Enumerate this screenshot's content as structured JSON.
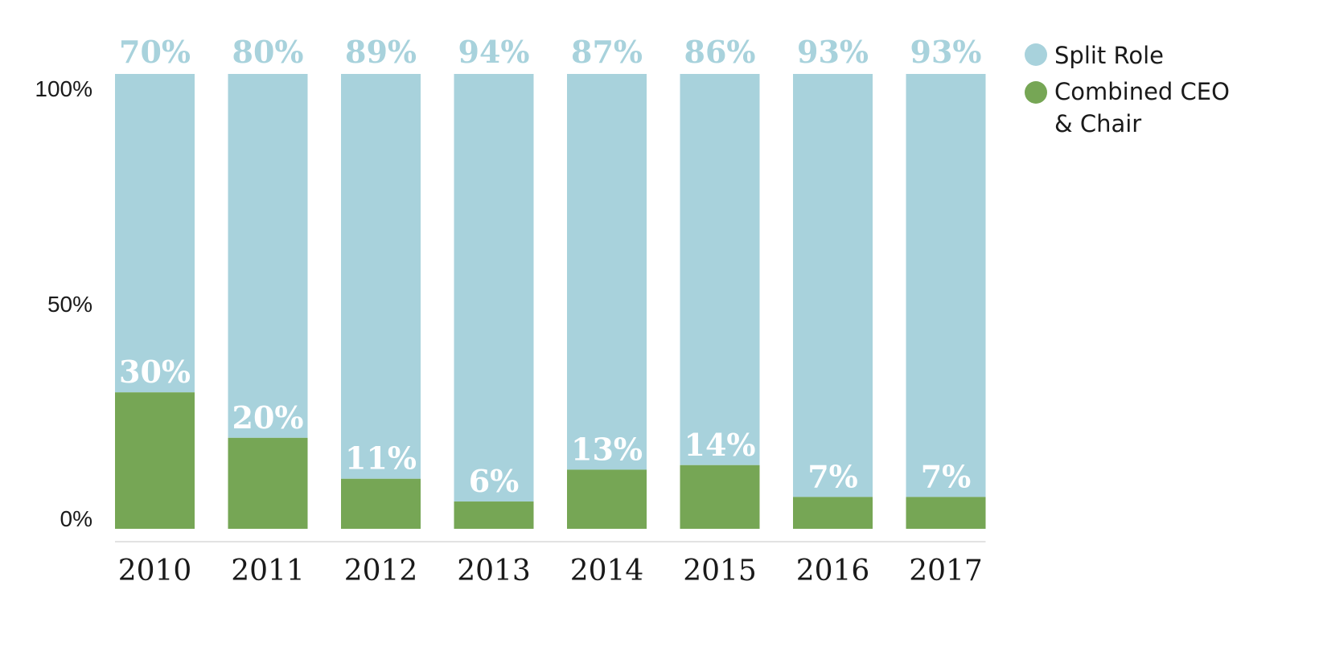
{
  "chart_data": {
    "type": "bar",
    "stacked": true,
    "categories": [
      "2010",
      "2011",
      "2012",
      "2013",
      "2014",
      "2015",
      "2016",
      "2017"
    ],
    "series": [
      {
        "name": "Split Role",
        "color": "#a8d2dc",
        "values": [
          70,
          80,
          89,
          94,
          87,
          86,
          93,
          93
        ],
        "labels": [
          "70%",
          "80%",
          "89%",
          "94%",
          "87%",
          "86%",
          "93%",
          "93%"
        ]
      },
      {
        "name": "Combined CEO & Chair",
        "color": "#76a655",
        "values": [
          30,
          20,
          11,
          6,
          13,
          14,
          7,
          7
        ],
        "labels": [
          "30%",
          "20%",
          "11%",
          "6%",
          "13%",
          "14%",
          "7%",
          "7%"
        ]
      }
    ],
    "yticks": [
      "0%",
      "50%",
      "100%"
    ],
    "ylim": [
      0,
      100
    ],
    "grid": false,
    "legend": {
      "position": "top-right",
      "items": [
        {
          "label": "Split Role",
          "color": "#a8d2dc"
        },
        {
          "label_lines": [
            "Combined CEO",
            "& Chair"
          ],
          "color": "#76a655"
        }
      ]
    },
    "axis_line_color": "#d9d9d9"
  }
}
